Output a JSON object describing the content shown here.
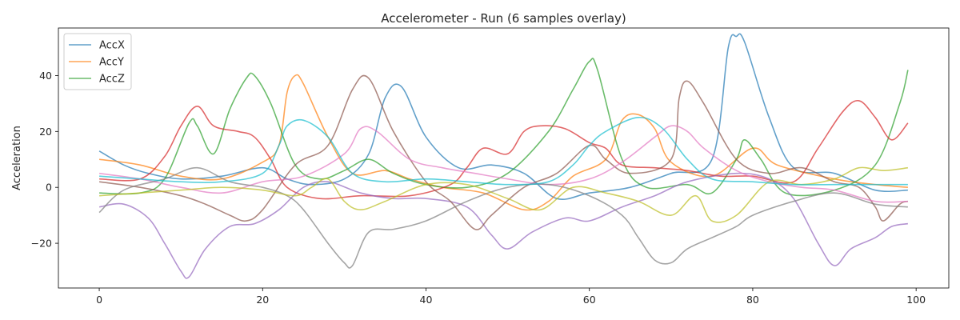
{
  "chart_data": {
    "type": "line",
    "title": "Accelerometer - Run (6 samples overlay)",
    "xlabel": "",
    "ylabel": "Acceleration",
    "xlim": [
      -5,
      104
    ],
    "ylim": [
      -36,
      57
    ],
    "xticks": [
      0,
      20,
      40,
      60,
      80,
      100
    ],
    "yticks": [
      -20,
      0,
      20,
      40
    ],
    "grid": false,
    "legend_position": "top-left",
    "legend": [
      {
        "name": "AccX",
        "color": "#1f77b4"
      },
      {
        "name": "AccY",
        "color": "#ff7f0e"
      },
      {
        "name": "AccZ",
        "color": "#2ca02c"
      }
    ],
    "series": [
      {
        "color": "#1f77b4",
        "points": [
          [
            0,
            13
          ],
          [
            3,
            8
          ],
          [
            6,
            5
          ],
          [
            10,
            3
          ],
          [
            15,
            4
          ],
          [
            20,
            7
          ],
          [
            23,
            3
          ],
          [
            26,
            1
          ],
          [
            30,
            3
          ],
          [
            33,
            12
          ],
          [
            35,
            32
          ],
          [
            37,
            36
          ],
          [
            40,
            18
          ],
          [
            44,
            7
          ],
          [
            48,
            8
          ],
          [
            52,
            5
          ],
          [
            56,
            -4
          ],
          [
            60,
            -2
          ],
          [
            65,
            0
          ],
          [
            70,
            5
          ],
          [
            75,
            10
          ],
          [
            77,
            50
          ],
          [
            78,
            54
          ],
          [
            79,
            52
          ],
          [
            82,
            25
          ],
          [
            85,
            7
          ],
          [
            90,
            5
          ],
          [
            95,
            -1
          ],
          [
            99,
            -1
          ]
        ]
      },
      {
        "color": "#ff7f0e",
        "points": [
          [
            0,
            10
          ],
          [
            5,
            8
          ],
          [
            10,
            4
          ],
          [
            15,
            3
          ],
          [
            20,
            9
          ],
          [
            22,
            15
          ],
          [
            23,
            34
          ],
          [
            24,
            40
          ],
          [
            25,
            37
          ],
          [
            28,
            18
          ],
          [
            31,
            5
          ],
          [
            35,
            6
          ],
          [
            38,
            3
          ],
          [
            42,
            0
          ],
          [
            47,
            -2
          ],
          [
            52,
            -8
          ],
          [
            55,
            -5
          ],
          [
            58,
            4
          ],
          [
            62,
            10
          ],
          [
            64,
            24
          ],
          [
            66,
            26
          ],
          [
            68,
            21
          ],
          [
            70,
            9
          ],
          [
            75,
            4
          ],
          [
            80,
            14
          ],
          [
            83,
            8
          ],
          [
            90,
            3
          ],
          [
            95,
            1
          ],
          [
            99,
            0
          ]
        ]
      },
      {
        "color": "#2ca02c",
        "points": [
          [
            0,
            -2
          ],
          [
            5,
            -2
          ],
          [
            8,
            3
          ],
          [
            11,
            23
          ],
          [
            12,
            22
          ],
          [
            14,
            12
          ],
          [
            16,
            28
          ],
          [
            18,
            39
          ],
          [
            19,
            40
          ],
          [
            21,
            30
          ],
          [
            24,
            8
          ],
          [
            27,
            3
          ],
          [
            30,
            6
          ],
          [
            33,
            10
          ],
          [
            36,
            5
          ],
          [
            40,
            1
          ],
          [
            45,
            0
          ],
          [
            50,
            5
          ],
          [
            55,
            20
          ],
          [
            58,
            35
          ],
          [
            60,
            45
          ],
          [
            61,
            42
          ],
          [
            64,
            10
          ],
          [
            67,
            0
          ],
          [
            72,
            1
          ],
          [
            75,
            -2
          ],
          [
            78,
            10
          ],
          [
            79,
            17
          ],
          [
            81,
            10
          ],
          [
            84,
            -2
          ],
          [
            90,
            -1
          ],
          [
            95,
            8
          ],
          [
            98,
            30
          ],
          [
            99,
            42
          ]
        ]
      },
      {
        "color": "#d62728",
        "points": [
          [
            0,
            3
          ],
          [
            5,
            3
          ],
          [
            8,
            11
          ],
          [
            10,
            22
          ],
          [
            12,
            29
          ],
          [
            14,
            22
          ],
          [
            17,
            20
          ],
          [
            19,
            18
          ],
          [
            21,
            10
          ],
          [
            23,
            0
          ],
          [
            27,
            -4
          ],
          [
            32,
            -3
          ],
          [
            38,
            -3
          ],
          [
            43,
            1
          ],
          [
            45,
            7
          ],
          [
            47,
            14
          ],
          [
            50,
            12
          ],
          [
            52,
            20
          ],
          [
            54,
            22
          ],
          [
            57,
            21
          ],
          [
            60,
            16
          ],
          [
            62,
            14
          ],
          [
            64,
            8
          ],
          [
            68,
            7
          ],
          [
            72,
            6
          ],
          [
            76,
            4
          ],
          [
            80,
            4
          ],
          [
            85,
            2
          ],
          [
            88,
            14
          ],
          [
            91,
            27
          ],
          [
            93,
            31
          ],
          [
            95,
            25
          ],
          [
            97,
            17
          ],
          [
            99,
            23
          ]
        ]
      },
      {
        "color": "#9467bd",
        "points": [
          [
            0,
            -7
          ],
          [
            3,
            -6
          ],
          [
            6,
            -11
          ],
          [
            8,
            -20
          ],
          [
            10,
            -30
          ],
          [
            11,
            -32
          ],
          [
            13,
            -22
          ],
          [
            16,
            -14
          ],
          [
            19,
            -13
          ],
          [
            22,
            -8
          ],
          [
            25,
            0
          ],
          [
            28,
            2
          ],
          [
            32,
            -2
          ],
          [
            36,
            -4
          ],
          [
            40,
            -4
          ],
          [
            45,
            -7
          ],
          [
            48,
            -17
          ],
          [
            50,
            -22
          ],
          [
            53,
            -16
          ],
          [
            57,
            -11
          ],
          [
            60,
            -12
          ],
          [
            64,
            -7
          ],
          [
            68,
            -3
          ],
          [
            72,
            2
          ],
          [
            78,
            5
          ],
          [
            82,
            3
          ],
          [
            85,
            -4
          ],
          [
            88,
            -20
          ],
          [
            90,
            -28
          ],
          [
            92,
            -22
          ],
          [
            95,
            -18
          ],
          [
            97,
            -14
          ],
          [
            99,
            -13
          ]
        ]
      },
      {
        "color": "#8c564b",
        "points": [
          [
            0,
            2
          ],
          [
            5,
            0
          ],
          [
            10,
            -3
          ],
          [
            13,
            -6
          ],
          [
            16,
            -10
          ],
          [
            18,
            -12
          ],
          [
            20,
            -8
          ],
          [
            24,
            8
          ],
          [
            28,
            15
          ],
          [
            31,
            35
          ],
          [
            33,
            39
          ],
          [
            36,
            20
          ],
          [
            40,
            2
          ],
          [
            43,
            -5
          ],
          [
            46,
            -15
          ],
          [
            48,
            -10
          ],
          [
            52,
            0
          ],
          [
            56,
            5
          ],
          [
            60,
            15
          ],
          [
            62,
            10
          ],
          [
            65,
            5
          ],
          [
            70,
            10
          ],
          [
            71,
            32
          ],
          [
            72,
            38
          ],
          [
            74,
            30
          ],
          [
            78,
            10
          ],
          [
            82,
            5
          ],
          [
            86,
            7
          ],
          [
            90,
            2
          ],
          [
            93,
            0
          ],
          [
            95,
            -7
          ],
          [
            96,
            -12
          ],
          [
            98,
            -6
          ],
          [
            99,
            -5
          ]
        ]
      },
      {
        "color": "#e377c2",
        "points": [
          [
            0,
            5
          ],
          [
            5,
            3
          ],
          [
            10,
            0
          ],
          [
            15,
            -2
          ],
          [
            20,
            2
          ],
          [
            25,
            4
          ],
          [
            30,
            12
          ],
          [
            32,
            21
          ],
          [
            34,
            20
          ],
          [
            38,
            10
          ],
          [
            42,
            7
          ],
          [
            46,
            5
          ],
          [
            50,
            3
          ],
          [
            55,
            1
          ],
          [
            60,
            3
          ],
          [
            64,
            9
          ],
          [
            68,
            18
          ],
          [
            70,
            22
          ],
          [
            72,
            20
          ],
          [
            74,
            14
          ],
          [
            78,
            6
          ],
          [
            82,
            2
          ],
          [
            86,
            0
          ],
          [
            90,
            -1
          ],
          [
            95,
            -5
          ],
          [
            99,
            -5
          ]
        ]
      },
      {
        "color": "#7f7f7f",
        "points": [
          [
            0,
            -9
          ],
          [
            3,
            -1
          ],
          [
            8,
            3
          ],
          [
            12,
            7
          ],
          [
            16,
            2
          ],
          [
            20,
            0
          ],
          [
            23,
            -3
          ],
          [
            25,
            -8
          ],
          [
            28,
            -20
          ],
          [
            30,
            -27
          ],
          [
            31,
            -28
          ],
          [
            33,
            -16
          ],
          [
            36,
            -15
          ],
          [
            40,
            -12
          ],
          [
            45,
            -5
          ],
          [
            50,
            0
          ],
          [
            55,
            1
          ],
          [
            60,
            -3
          ],
          [
            64,
            -10
          ],
          [
            66,
            -18
          ],
          [
            68,
            -26
          ],
          [
            70,
            -27
          ],
          [
            72,
            -22
          ],
          [
            75,
            -18
          ],
          [
            78,
            -14
          ],
          [
            80,
            -10
          ],
          [
            85,
            -5
          ],
          [
            90,
            -2
          ],
          [
            95,
            -6
          ],
          [
            99,
            -7
          ]
        ]
      },
      {
        "color": "#bcbd22",
        "points": [
          [
            0,
            -3
          ],
          [
            5,
            -2
          ],
          [
            10,
            -1
          ],
          [
            15,
            0
          ],
          [
            20,
            -1
          ],
          [
            24,
            -3
          ],
          [
            26,
            0
          ],
          [
            28,
            3
          ],
          [
            30,
            -5
          ],
          [
            32,
            -8
          ],
          [
            35,
            -5
          ],
          [
            40,
            1
          ],
          [
            45,
            1
          ],
          [
            50,
            -4
          ],
          [
            54,
            -8
          ],
          [
            58,
            0
          ],
          [
            62,
            -2
          ],
          [
            66,
            -5
          ],
          [
            70,
            -10
          ],
          [
            73,
            -3
          ],
          [
            75,
            -12
          ],
          [
            78,
            -10
          ],
          [
            82,
            2
          ],
          [
            86,
            1
          ],
          [
            90,
            3
          ],
          [
            93,
            7
          ],
          [
            96,
            6
          ],
          [
            99,
            7
          ]
        ]
      },
      {
        "color": "#17becf",
        "points": [
          [
            0,
            4
          ],
          [
            5,
            3
          ],
          [
            10,
            2
          ],
          [
            15,
            2
          ],
          [
            20,
            5
          ],
          [
            22,
            15
          ],
          [
            23,
            22
          ],
          [
            25,
            24
          ],
          [
            28,
            18
          ],
          [
            31,
            5
          ],
          [
            35,
            2
          ],
          [
            40,
            3
          ],
          [
            45,
            2
          ],
          [
            50,
            1
          ],
          [
            55,
            2
          ],
          [
            58,
            8
          ],
          [
            60,
            15
          ],
          [
            62,
            20
          ],
          [
            66,
            25
          ],
          [
            69,
            21
          ],
          [
            72,
            10
          ],
          [
            75,
            3
          ],
          [
            80,
            2
          ],
          [
            85,
            1
          ],
          [
            90,
            1
          ],
          [
            95,
            1
          ],
          [
            99,
            1
          ]
        ]
      }
    ]
  }
}
